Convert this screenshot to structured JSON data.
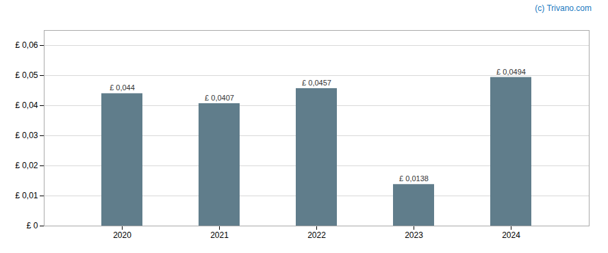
{
  "chart_data": {
    "type": "bar",
    "categories": [
      "2020",
      "2021",
      "2022",
      "2023",
      "2024"
    ],
    "values": [
      0.044,
      0.0407,
      0.0457,
      0.0138,
      0.0494
    ],
    "value_labels": [
      "£ 0,044",
      "£ 0,0407",
      "£ 0,0457",
      "£ 0,0138",
      "£ 0,0494"
    ],
    "color": "#607d8b",
    "ylim": [
      0,
      0.065
    ],
    "yticks": [
      {
        "value": 0,
        "label": "£ 0"
      },
      {
        "value": 0.01,
        "label": "£ 0,01"
      },
      {
        "value": 0.02,
        "label": "£ 0,02"
      },
      {
        "value": 0.03,
        "label": "£ 0,03"
      },
      {
        "value": 0.04,
        "label": "£ 0,04"
      },
      {
        "value": 0.05,
        "label": "£ 0,05"
      },
      {
        "value": 0.06,
        "label": "£ 0,06"
      }
    ],
    "grid": true,
    "data_labels": true,
    "annotations": [
      {
        "text": "(c) Trivano.com",
        "color": "#1a7abf"
      }
    ]
  }
}
